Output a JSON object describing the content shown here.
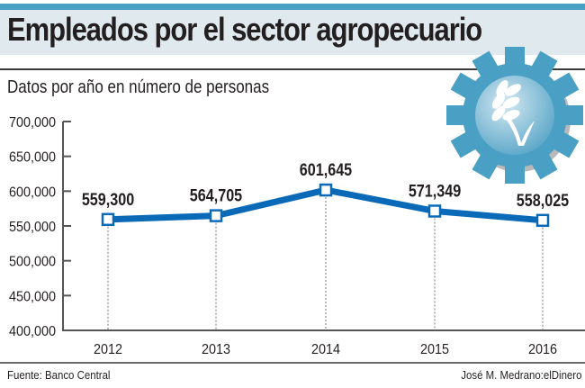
{
  "header": {
    "title": "Empleados por el sector agropecuario",
    "subtitle": "Datos por año en número de personas"
  },
  "footer": {
    "source": "Fuente: Banco Central",
    "credit": "José M. Medrano:elDinero"
  },
  "icon": "gear-wheat-icon",
  "colors": {
    "accent": "#4aa0c4",
    "line": "#0a6ab8",
    "header_bg": "#dfe9ee",
    "text": "#231f20"
  },
  "chart_data": {
    "type": "line",
    "title": "Empleados por el sector agropecuario",
    "subtitle": "Datos por año en número de personas",
    "xlabel": "",
    "ylabel": "",
    "categories": [
      "2012",
      "2013",
      "2014",
      "2015",
      "2016"
    ],
    "values": [
      559300,
      564705,
      601645,
      571349,
      558025
    ],
    "data_labels": [
      "559,300",
      "564,705",
      "601,645",
      "571,349",
      "558,025"
    ],
    "ylim": [
      400000,
      700000
    ],
    "yticks": [
      400000,
      450000,
      500000,
      550000,
      600000,
      650000,
      700000
    ],
    "ytick_labels": [
      "400,000",
      "450,000",
      "500,000",
      "550,000",
      "600,000",
      "650,000",
      "700,000"
    ],
    "grid": false,
    "legend": "none"
  }
}
